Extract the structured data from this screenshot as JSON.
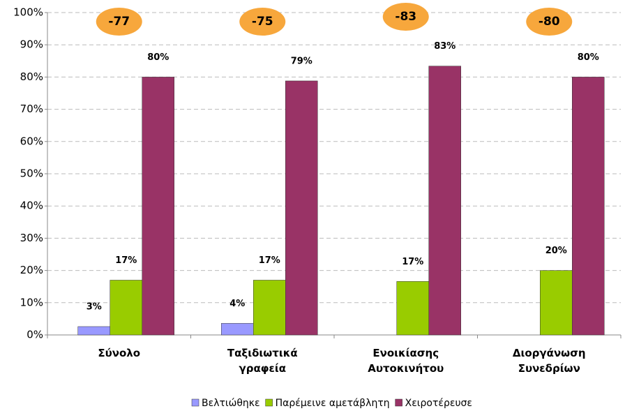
{
  "chart_data": {
    "type": "bar",
    "categories": [
      "Σύνολο",
      "Ταξιδιωτικά\nγραφεία",
      "Ενοικίασης\nΑυτοκινήτου",
      "Διοργάνωση\nΣυνεδρίων"
    ],
    "series": [
      {
        "name": "Βελτιώθηκε",
        "color": "#9999ff",
        "values": [
          2.6,
          3.6,
          null,
          null
        ],
        "value_labels": [
          "3%",
          "4%",
          null,
          null
        ]
      },
      {
        "name": "Παρέμεινε αμετάβλητη",
        "color": "#99cc00",
        "values": [
          17,
          17,
          16.6,
          20
        ],
        "value_labels": [
          "17%",
          "17%",
          "17%",
          "20%"
        ]
      },
      {
        "name": "Χειροτέρευσε",
        "color": "#993366",
        "values": [
          80,
          78.8,
          83.4,
          80
        ],
        "value_labels": [
          "80%",
          "79%",
          "83%",
          "80%"
        ]
      }
    ],
    "differences": [
      -77,
      -75,
      -83,
      -80
    ],
    "difference_color": "#f7a73c",
    "ylim": [
      0,
      100
    ],
    "yticks": [
      {
        "value": 0,
        "label": "0%"
      },
      {
        "value": 10,
        "label": "10%"
      },
      {
        "value": 20,
        "label": "20%"
      },
      {
        "value": 30,
        "label": "30%"
      },
      {
        "value": 40,
        "label": "40%"
      },
      {
        "value": 50,
        "label": "50%"
      },
      {
        "value": 60,
        "label": "60%"
      },
      {
        "value": 70,
        "label": "70%"
      },
      {
        "value": 80,
        "label": "80%"
      },
      {
        "value": 90,
        "label": "90%"
      },
      {
        "value": 100,
        "label": "100%"
      }
    ],
    "grid": true,
    "legend": "bottom"
  }
}
